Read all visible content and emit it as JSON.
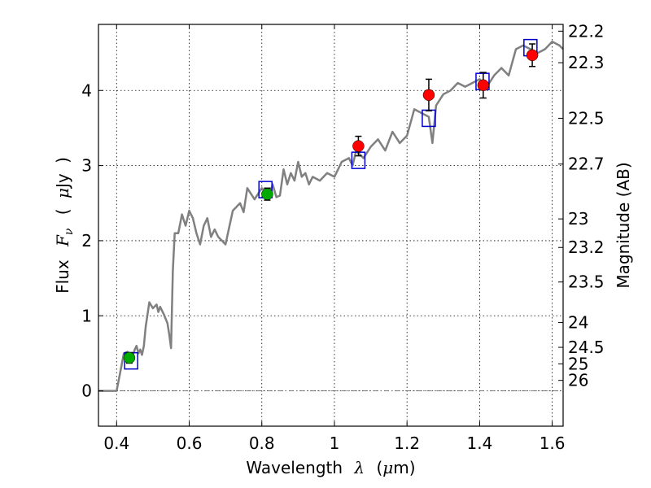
{
  "chart_data": {
    "type": "scatter",
    "title": "",
    "xlabel_parts": [
      "Wavelength",
      "λ",
      "(",
      "μ",
      "m)"
    ],
    "ylabel_parts": [
      "Flux",
      "F",
      "ν",
      "(",
      "μ",
      "Jy",
      ")"
    ],
    "y2label": "Magnitude (AB)",
    "xlim": [
      0.35,
      1.63
    ],
    "ylim": [
      -0.47,
      4.88
    ],
    "grid": true,
    "x_ticks": [
      {
        "value": 0.4,
        "label": "0.4"
      },
      {
        "value": 0.6,
        "label": "0.6"
      },
      {
        "value": 0.8,
        "label": "0.8"
      },
      {
        "value": 1.0,
        "label": "1"
      },
      {
        "value": 1.2,
        "label": "1.2"
      },
      {
        "value": 1.4,
        "label": "1.4"
      },
      {
        "value": 1.6,
        "label": "1.6"
      }
    ],
    "y_ticks": [
      {
        "value": 0,
        "label": "0"
      },
      {
        "value": 1,
        "label": "1"
      },
      {
        "value": 2,
        "label": "2"
      },
      {
        "value": 3,
        "label": "3"
      },
      {
        "value": 4,
        "label": "4"
      }
    ],
    "y2_ticks": [
      {
        "label": "22.2",
        "flux": 4.79
      },
      {
        "label": "22.3",
        "flux": 4.37
      },
      {
        "label": "22.5",
        "flux": 3.63
      },
      {
        "label": "22.7",
        "flux": 3.02
      },
      {
        "label": "23",
        "flux": 2.29
      },
      {
        "label": "23.2",
        "flux": 1.91
      },
      {
        "label": "23.5",
        "flux": 1.45
      },
      {
        "label": "24",
        "flux": 0.91
      },
      {
        "label": "24.5",
        "flux": 0.58
      },
      {
        "label": "25",
        "flux": 0.36
      },
      {
        "label": "26",
        "flux": 0.14
      }
    ],
    "zero_line": 0,
    "series": [
      {
        "role": "model_spectrum",
        "style": "line",
        "color": "#808080",
        "x": [
          0.35,
          0.4,
          0.41,
          0.42,
          0.43,
          0.44,
          0.45,
          0.455,
          0.46,
          0.465,
          0.47,
          0.475,
          0.48,
          0.49,
          0.5,
          0.51,
          0.515,
          0.52,
          0.53,
          0.54,
          0.545,
          0.55,
          0.555,
          0.56,
          0.57,
          0.58,
          0.59,
          0.6,
          0.61,
          0.62,
          0.63,
          0.64,
          0.65,
          0.66,
          0.67,
          0.68,
          0.69,
          0.7,
          0.72,
          0.74,
          0.75,
          0.76,
          0.78,
          0.8,
          0.82,
          0.83,
          0.84,
          0.85,
          0.86,
          0.87,
          0.88,
          0.89,
          0.9,
          0.91,
          0.92,
          0.93,
          0.94,
          0.96,
          0.98,
          1.0,
          1.02,
          1.04,
          1.05,
          1.06,
          1.08,
          1.1,
          1.12,
          1.14,
          1.16,
          1.18,
          1.2,
          1.22,
          1.24,
          1.26,
          1.27,
          1.28,
          1.3,
          1.32,
          1.34,
          1.36,
          1.38,
          1.4,
          1.42,
          1.44,
          1.46,
          1.48,
          1.5,
          1.52,
          1.54,
          1.56,
          1.58,
          1.6,
          1.62,
          1.63
        ],
        "y": [
          0.0,
          0.0,
          0.25,
          0.5,
          0.52,
          0.4,
          0.55,
          0.6,
          0.5,
          0.55,
          0.48,
          0.6,
          0.85,
          1.18,
          1.1,
          1.15,
          1.05,
          1.12,
          1.02,
          0.9,
          0.75,
          0.57,
          1.6,
          2.1,
          2.1,
          2.35,
          2.2,
          2.4,
          2.3,
          2.1,
          1.95,
          2.2,
          2.3,
          2.05,
          2.15,
          2.05,
          2.0,
          1.95,
          2.4,
          2.5,
          2.38,
          2.7,
          2.55,
          2.7,
          2.6,
          2.75,
          2.58,
          2.6,
          2.95,
          2.75,
          2.9,
          2.8,
          3.05,
          2.85,
          2.9,
          2.75,
          2.85,
          2.8,
          2.9,
          2.85,
          3.05,
          3.1,
          3.0,
          3.2,
          3.1,
          3.25,
          3.35,
          3.2,
          3.45,
          3.3,
          3.4,
          3.75,
          3.7,
          3.65,
          3.3,
          3.8,
          3.95,
          4.0,
          4.1,
          4.05,
          4.1,
          4.15,
          4.05,
          4.2,
          4.3,
          4.2,
          4.55,
          4.6,
          4.55,
          4.5,
          4.55,
          4.65,
          4.6,
          4.55
        ]
      },
      {
        "role": "model_photometry",
        "style": "open-square",
        "color": "#0000cc",
        "x": [
          0.44,
          0.81,
          1.066,
          1.26,
          1.408,
          1.54
        ],
        "y": [
          0.4,
          2.68,
          3.07,
          3.63,
          4.12,
          4.57
        ]
      },
      {
        "role": "upper_limits",
        "style": "filled-circle",
        "color": "#00aa00",
        "x": [
          0.435,
          0.815
        ],
        "y": [
          0.44,
          2.62
        ],
        "yerr": [
          0.07,
          0.08
        ]
      },
      {
        "role": "detections",
        "style": "filled-circle",
        "color": "#ff0000",
        "x": [
          1.066,
          1.26,
          1.41,
          1.545
        ],
        "y": [
          3.26,
          3.94,
          4.07,
          4.47
        ],
        "yerr": [
          0.13,
          0.21,
          0.17,
          0.15
        ]
      }
    ]
  }
}
